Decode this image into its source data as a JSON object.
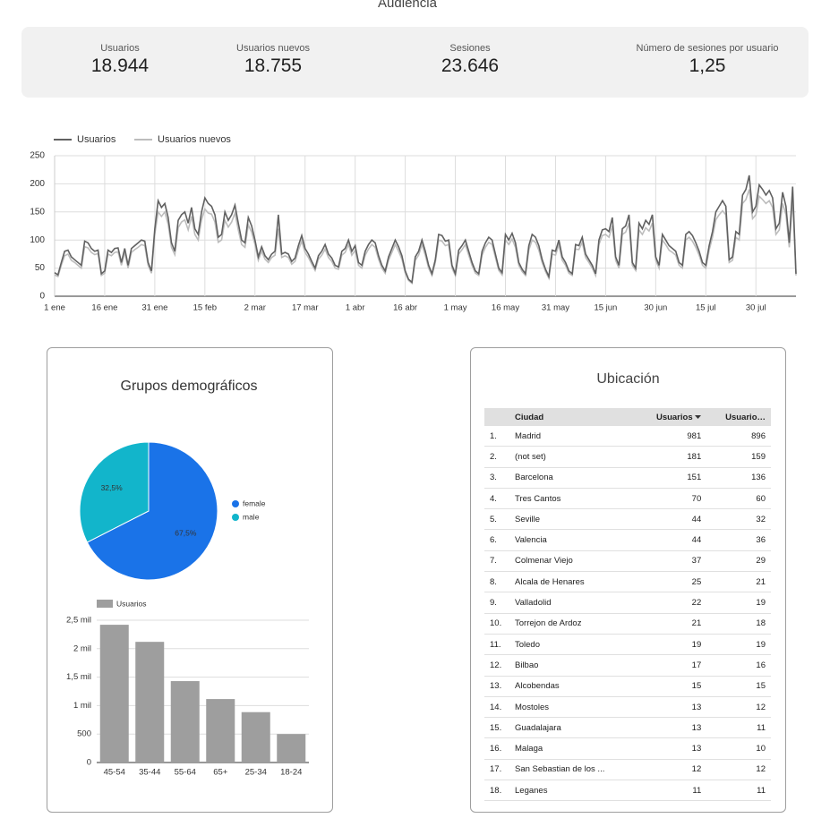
{
  "title": "Audiencia",
  "kpis": [
    {
      "label": "Usuarios",
      "value": "18.944"
    },
    {
      "label": "Usuarios nuevos",
      "value": "18.755"
    },
    {
      "label": "Sesiones",
      "value": "23.646"
    },
    {
      "label": "Número de sesiones por usuario",
      "value": "1,25"
    }
  ],
  "chart_data": [
    {
      "type": "line",
      "categories": [
        "1 ene",
        null,
        null,
        null,
        null,
        null,
        null,
        null,
        null,
        null,
        null,
        null,
        null,
        null,
        null,
        "16 ene",
        null,
        null,
        null,
        null,
        null,
        null,
        null,
        null,
        null,
        null,
        null,
        null,
        null,
        null,
        "31 ene",
        null,
        null,
        null,
        null,
        null,
        null,
        null,
        null,
        null,
        null,
        null,
        null,
        null,
        null,
        "15 feb",
        null,
        null,
        null,
        null,
        null,
        null,
        null,
        null,
        null,
        null,
        null,
        null,
        null,
        null,
        "2 mar",
        null,
        null,
        null,
        null,
        null,
        null,
        null,
        null,
        null,
        null,
        null,
        null,
        null,
        null,
        "17 mar",
        null,
        null,
        null,
        null,
        null,
        null,
        null,
        null,
        null,
        null,
        null,
        null,
        null,
        null,
        "1 abr",
        null,
        null,
        null,
        null,
        null,
        null,
        null,
        null,
        null,
        null,
        null,
        null,
        null,
        null,
        "16 abr",
        null,
        null,
        null,
        null,
        null,
        null,
        null,
        null,
        null,
        null,
        null,
        null,
        null,
        null,
        "1 may",
        null,
        null,
        null,
        null,
        null,
        null,
        null,
        null,
        null,
        null,
        null,
        null,
        null,
        null,
        "16 may",
        null,
        null,
        null,
        null,
        null,
        null,
        null,
        null,
        null,
        null,
        null,
        null,
        null,
        null,
        "31 may",
        null,
        null,
        null,
        null,
        null,
        null,
        null,
        null,
        null,
        null,
        null,
        null,
        null,
        null,
        "15 jun",
        null,
        null,
        null,
        null,
        null,
        null,
        null,
        null,
        null,
        null,
        null,
        null,
        null,
        null,
        "30 jun",
        null,
        null,
        null,
        null,
        null,
        null,
        null,
        null,
        null,
        null,
        null,
        null,
        null,
        null,
        "15 jul",
        null,
        null,
        null,
        null,
        null,
        null,
        null,
        null,
        null,
        null,
        null,
        null,
        null,
        null,
        "30 jul",
        null,
        null,
        null,
        null,
        null,
        null,
        null,
        null,
        null,
        null,
        null,
        null
      ],
      "series": [
        {
          "name": "Usuarios",
          "color": "#616161",
          "values": [
            42,
            38,
            60,
            80,
            82,
            70,
            65,
            60,
            55,
            98,
            95,
            85,
            80,
            82,
            40,
            45,
            82,
            78,
            85,
            86,
            60,
            85,
            55,
            85,
            90,
            95,
            100,
            98,
            60,
            45,
            120,
            170,
            158,
            165,
            140,
            95,
            80,
            135,
            145,
            150,
            130,
            158,
            120,
            110,
            150,
            175,
            165,
            160,
            145,
            105,
            110,
            150,
            135,
            145,
            162,
            130,
            100,
            95,
            140,
            125,
            100,
            70,
            88,
            72,
            65,
            75,
            80,
            145,
            75,
            78,
            75,
            62,
            68,
            90,
            108,
            85,
            75,
            62,
            50,
            72,
            80,
            92,
            75,
            68,
            55,
            52,
            80,
            85,
            100,
            80,
            90,
            60,
            55,
            80,
            92,
            100,
            95,
            72,
            55,
            45,
            70,
            85,
            100,
            88,
            72,
            45,
            30,
            25,
            70,
            80,
            100,
            80,
            55,
            40,
            65,
            110,
            108,
            98,
            100,
            55,
            40,
            82,
            90,
            100,
            80,
            60,
            45,
            40,
            80,
            95,
            105,
            100,
            75,
            50,
            42,
            110,
            100,
            112,
            95,
            60,
            48,
            40,
            90,
            110,
            105,
            90,
            65,
            48,
            35,
            82,
            80,
            100,
            70,
            60,
            45,
            40,
            92,
            90,
            105,
            75,
            65,
            55,
            40,
            100,
            118,
            120,
            115,
            140,
            70,
            55,
            120,
            125,
            145,
            60,
            50,
            130,
            120,
            135,
            128,
            145,
            70,
            55,
            110,
            100,
            90,
            85,
            80,
            60,
            55,
            110,
            115,
            108,
            95,
            80,
            60,
            55,
            90,
            115,
            150,
            160,
            170,
            160,
            65,
            70,
            115,
            110,
            180,
            190,
            215,
            150,
            160,
            198,
            190,
            180,
            188,
            175,
            120,
            130,
            185,
            160,
            95,
            195,
            40
          ]
        },
        {
          "name": "Usuarios nuevos",
          "color": "#bdbdbd",
          "values": [
            38,
            35,
            55,
            72,
            75,
            64,
            60,
            55,
            50,
            88,
            86,
            78,
            74,
            76,
            37,
            41,
            75,
            72,
            78,
            79,
            55,
            78,
            50,
            78,
            83,
            87,
            92,
            90,
            55,
            41,
            110,
            150,
            142,
            150,
            128,
            87,
            74,
            122,
            132,
            136,
            118,
            142,
            110,
            100,
            136,
            155,
            148,
            146,
            132,
            96,
            100,
            135,
            123,
            132,
            148,
            118,
            92,
            87,
            127,
            114,
            92,
            64,
            80,
            66,
            60,
            69,
            73,
            120,
            69,
            72,
            69,
            57,
            62,
            82,
            98,
            78,
            69,
            57,
            46,
            66,
            73,
            84,
            69,
            62,
            50,
            48,
            73,
            78,
            92,
            73,
            82,
            55,
            50,
            73,
            84,
            92,
            87,
            66,
            50,
            41,
            64,
            78,
            92,
            80,
            66,
            41,
            28,
            23,
            64,
            73,
            92,
            73,
            50,
            37,
            60,
            100,
            98,
            90,
            92,
            50,
            37,
            75,
            83,
            92,
            73,
            55,
            41,
            37,
            73,
            87,
            96,
            92,
            69,
            46,
            38,
            100,
            92,
            102,
            87,
            55,
            44,
            37,
            82,
            100,
            96,
            82,
            60,
            44,
            32,
            75,
            73,
            92,
            64,
            55,
            41,
            37,
            84,
            83,
            96,
            69,
            60,
            50,
            37,
            92,
            108,
            110,
            105,
            125,
            64,
            50,
            110,
            114,
            130,
            55,
            46,
            118,
            110,
            122,
            116,
            130,
            64,
            50,
            100,
            92,
            82,
            78,
            73,
            55,
            50,
            100,
            105,
            98,
            87,
            73,
            55,
            50,
            82,
            105,
            136,
            145,
            152,
            145,
            60,
            64,
            105,
            100,
            165,
            172,
            190,
            138,
            145,
            178,
            172,
            165,
            170,
            158,
            110,
            118,
            165,
            145,
            87,
            175,
            37
          ]
        }
      ],
      "ylim": [
        0,
        250
      ],
      "yticks": [
        0,
        50,
        100,
        150,
        200,
        250
      ],
      "grid": true,
      "legend": "top"
    },
    {
      "type": "pie",
      "title": "Grupos demográficos",
      "categories": [
        "female",
        "male"
      ],
      "values": [
        67.5,
        32.5
      ],
      "value_labels": [
        "67,5%",
        "32,5%"
      ],
      "colors": [
        "#1a73e8",
        "#12b5cb"
      ],
      "legend": "right"
    },
    {
      "type": "bar",
      "categories": [
        "45-54",
        "35-44",
        "55-64",
        "65+",
        "25-34",
        "18-24"
      ],
      "series": [
        {
          "name": "Usuarios",
          "color": "#9e9e9e",
          "values": [
            2420,
            2120,
            1430,
            1115,
            885,
            500
          ]
        }
      ],
      "ylim": [
        0,
        2500
      ],
      "yticks": [
        0,
        500,
        {
          "value": 1000,
          "label": "1 mil"
        },
        {
          "value": 1500,
          "label": "1,5 mil"
        },
        {
          "value": 2000,
          "label": "2 mil"
        },
        {
          "value": 2500,
          "label": "2,5 mil"
        }
      ],
      "grid": true,
      "legend": "top"
    }
  ],
  "table": {
    "title": "Ubicación",
    "columns": [
      "Ciudad",
      "Usuarios",
      "Usuario…"
    ],
    "rows": [
      [
        "1.",
        "Madrid",
        "981",
        "896"
      ],
      [
        "2.",
        "(not set)",
        "181",
        "159"
      ],
      [
        "3.",
        "Barcelona",
        "151",
        "136"
      ],
      [
        "4.",
        "Tres Cantos",
        "70",
        "60"
      ],
      [
        "5.",
        "Seville",
        "44",
        "32"
      ],
      [
        "6.",
        "Valencia",
        "44",
        "36"
      ],
      [
        "7.",
        "Colmenar Viejo",
        "37",
        "29"
      ],
      [
        "8.",
        "Alcala de Henares",
        "25",
        "21"
      ],
      [
        "9.",
        "Valladolid",
        "22",
        "19"
      ],
      [
        "10.",
        "Torrejon de Ardoz",
        "21",
        "18"
      ],
      [
        "11.",
        "Toledo",
        "19",
        "19"
      ],
      [
        "12.",
        "Bilbao",
        "17",
        "16"
      ],
      [
        "13.",
        "Alcobendas",
        "15",
        "15"
      ],
      [
        "14.",
        "Mostoles",
        "13",
        "12"
      ],
      [
        "15.",
        "Guadalajara",
        "13",
        "11"
      ],
      [
        "16.",
        "Malaga",
        "13",
        "10"
      ],
      [
        "17.",
        "San Sebastian de los ...",
        "12",
        "12"
      ],
      [
        "18.",
        "Leganes",
        "11",
        "11"
      ]
    ]
  }
}
